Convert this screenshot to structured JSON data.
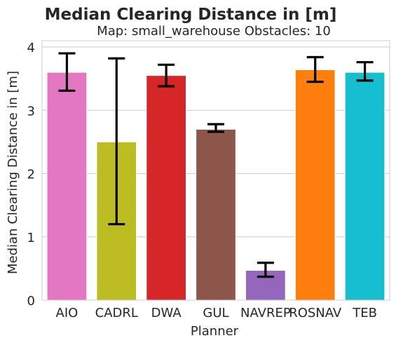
{
  "chart_data": {
    "type": "bar",
    "title": "Median Clearing Distance in [m]",
    "subtitle": "Map: small_warehouse Obstacles: 10",
    "xlabel": "Planner",
    "ylabel": "Median Clearing Distance in [m]",
    "ylim": [
      0,
      4.1
    ],
    "yticks": [
      "0",
      "1",
      "2",
      "3",
      "4"
    ],
    "grid": true,
    "categories": [
      "AIO",
      "CADRL",
      "DWA",
      "GUL",
      "NAVREP",
      "ROSNAV",
      "TEB"
    ],
    "values": [
      3.6,
      2.5,
      3.55,
      2.7,
      0.47,
      3.64,
      3.6
    ],
    "error_low": [
      3.31,
      1.2,
      3.38,
      2.66,
      0.37,
      3.45,
      3.47
    ],
    "error_high": [
      3.9,
      3.82,
      3.72,
      2.78,
      0.59,
      3.84,
      3.76
    ],
    "colors": [
      "#e377c2",
      "#bcbd22",
      "#d62728",
      "#8c564b",
      "#9467bd",
      "#ff7f0e",
      "#17becf"
    ]
  }
}
